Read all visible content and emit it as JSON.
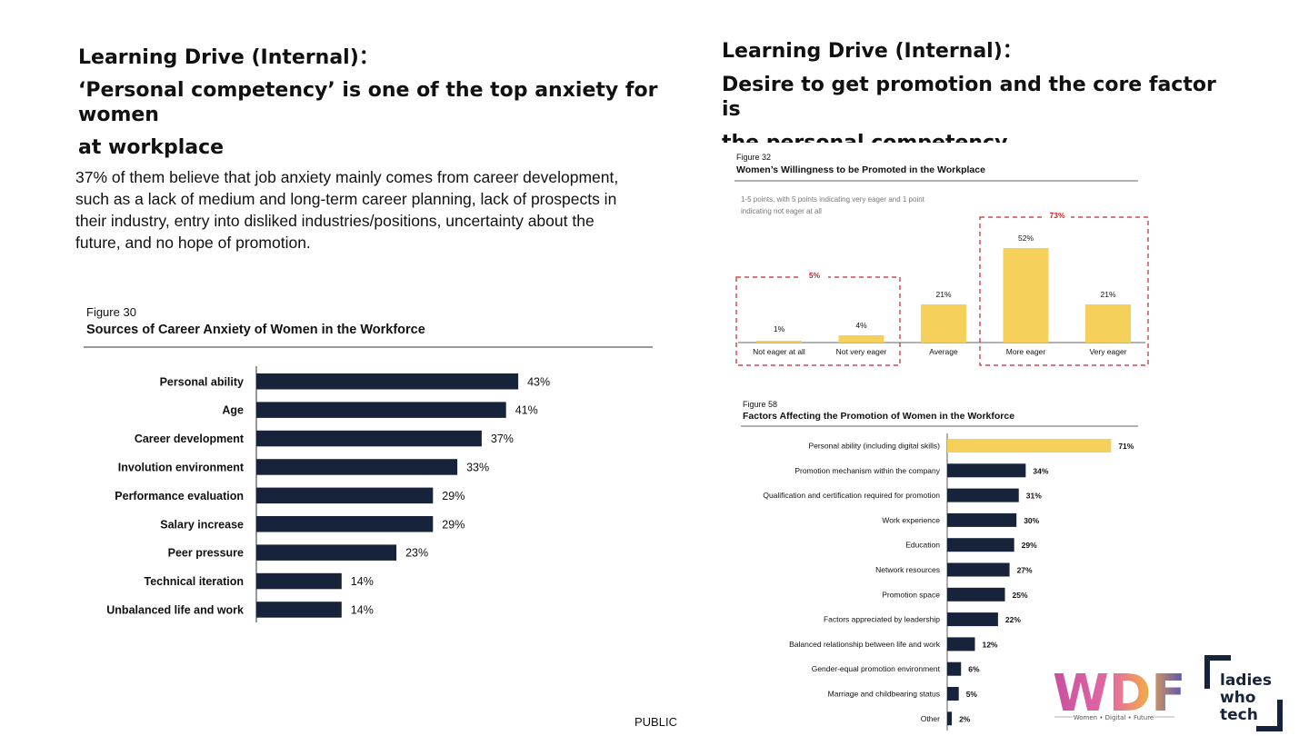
{
  "left_heading": {
    "line1": "Learning Drive (Internal)：",
    "line2": "‘Personal competency’ is one of the top anxiety for women",
    "line3": "at workplace"
  },
  "left_body": "37% of them believe that job anxiety mainly comes from career development, such as a lack of medium and long-term career planning, lack of prospects in their industry, entry into disliked industries/positions, uncertainty about the future, and no hope of promotion.",
  "right_heading": {
    "line1": "Learning Drive (Internal)：",
    "line2": "Desire to get promotion and the core factor is",
    "line3": "the personal competency"
  },
  "footer": "PUBLIC",
  "logos": {
    "wdf_text": "WDF",
    "wdf_tagline": "Women • Digital • Future",
    "lwt_line1": "ladies",
    "lwt_line2": "who",
    "lwt_line3": "tech"
  },
  "colors": {
    "navy": "#17233a",
    "yellow": "#f5d05a",
    "red_dash": "#c0282d"
  },
  "chart_data": [
    {
      "type": "bar",
      "orientation": "horizontal",
      "figure_label": "Figure 30",
      "title": "Sources of Career Anxiety of Women in the Workforce",
      "categories": [
        "Personal ability",
        "Age",
        "Career development",
        "Involution environment",
        "Performance evaluation",
        "Salary increase",
        "Peer pressure",
        "Technical iteration",
        "Unbalanced life and work"
      ],
      "values": [
        43,
        41,
        37,
        33,
        29,
        29,
        23,
        14,
        14
      ],
      "labels": [
        "43%",
        "41%",
        "37%",
        "33%",
        "29%",
        "29%",
        "23%",
        "14%",
        "14%"
      ],
      "xlim": [
        0,
        50
      ],
      "grid": false
    },
    {
      "type": "bar",
      "orientation": "vertical",
      "figure_label": "Figure 32",
      "title": "Women’s Willingness to be Promoted in the Workplace",
      "note": "1-5 points, with 5 points indicating very eager and 1 point indicating not eager at all",
      "categories": [
        "Not eager at all",
        "Not very eager",
        "Average",
        "More eager",
        "Very eager"
      ],
      "values": [
        1,
        4,
        21,
        52,
        21
      ],
      "labels": [
        "1%",
        "4%",
        "21%",
        "52%",
        "21%"
      ],
      "groups": [
        {
          "label": "5%",
          "categories": [
            "Not eager at all",
            "Not very eager"
          ]
        },
        {
          "label": "73%",
          "categories": [
            "More eager",
            "Very eager"
          ]
        }
      ],
      "ylim": [
        0,
        60
      ],
      "grid": false
    },
    {
      "type": "bar",
      "orientation": "horizontal",
      "figure_label": "Figure 58",
      "title": "Factors Affecting the Promotion of Women in the Workforce",
      "categories": [
        "Personal ability (including digital skills)",
        "Promotion mechanism within the company",
        "Qualification and certification required for promotion",
        "Work experience",
        "Education",
        "Network resources",
        "Promotion space",
        "Factors appreciated by leadership",
        "Balanced relationship between life and work",
        "Gender-equal promotion environment",
        "Marriage and childbearing status",
        "Other"
      ],
      "values": [
        71,
        34,
        31,
        30,
        29,
        27,
        25,
        22,
        12,
        6,
        5,
        2
      ],
      "labels": [
        "71%",
        "34%",
        "31%",
        "30%",
        "29%",
        "27%",
        "25%",
        "22%",
        "12%",
        "6%",
        "5%",
        "2%"
      ],
      "highlight_index": 0,
      "xlim": [
        0,
        80
      ],
      "grid": false
    }
  ]
}
